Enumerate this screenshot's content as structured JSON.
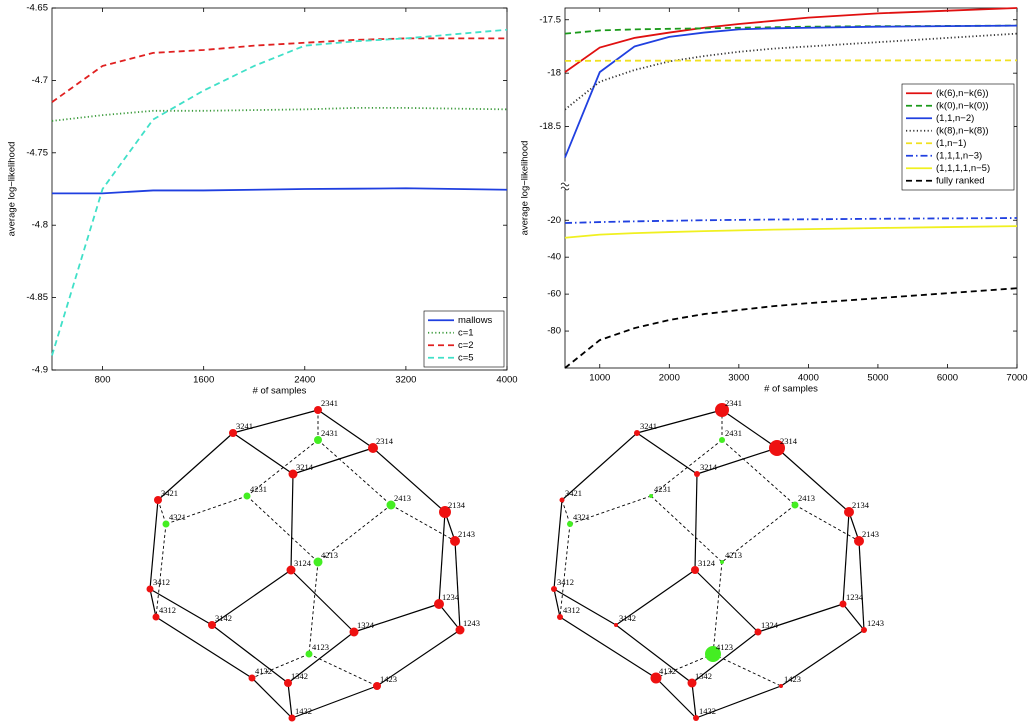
{
  "chart_data": [
    {
      "type": "line",
      "xlabel": "# of samples",
      "ylabel": "average log−likelihood",
      "x": [
        400,
        800,
        1200,
        1600,
        2000,
        2400,
        2800,
        3200,
        3600,
        4000
      ],
      "xlim": [
        400,
        4000
      ],
      "xticks": [
        800,
        1600,
        2400,
        3200,
        4000
      ],
      "ylim": [
        -4.9,
        -4.65
      ],
      "yticks": [
        -4.9,
        -4.85,
        -4.8,
        -4.75,
        -4.7,
        -4.65
      ],
      "legend": "lower right",
      "series": [
        {
          "name": "mallows",
          "color": "#1f3fe0",
          "style": "solid",
          "values": [
            -4.778,
            -4.778,
            -4.776,
            -4.776,
            -4.7755,
            -4.775,
            -4.7748,
            -4.7745,
            -4.775,
            -4.7755
          ]
        },
        {
          "name": "c=1",
          "color": "#3a9a3a",
          "style": "dotted",
          "values": [
            -4.728,
            -4.724,
            -4.721,
            -4.721,
            -4.7205,
            -4.72,
            -4.719,
            -4.719,
            -4.7195,
            -4.72
          ]
        },
        {
          "name": "c=2",
          "color": "#e02020",
          "style": "dashed",
          "values": [
            -4.715,
            -4.69,
            -4.681,
            -4.679,
            -4.676,
            -4.674,
            -4.672,
            -4.671,
            -4.671,
            -4.671
          ]
        },
        {
          "name": "c=5",
          "color": "#40e0c8",
          "style": "dashed",
          "values": [
            -4.89,
            -4.775,
            -4.727,
            -4.707,
            -4.69,
            -4.676,
            -4.673,
            -4.671,
            -4.668,
            -4.665
          ]
        }
      ]
    },
    {
      "type": "line",
      "xlabel": "# of samples",
      "ylabel": "average log−likelihood",
      "x": [
        500,
        1000,
        1500,
        2000,
        2500,
        3000,
        3500,
        4000,
        5000,
        6000,
        7000
      ],
      "xlim": [
        500,
        7000
      ],
      "xticks": [
        1000,
        2000,
        3000,
        4000,
        5000,
        6000,
        7000
      ],
      "ylim": [
        -100,
        -15
      ],
      "yticks": [
        -80,
        -60,
        -40,
        -20
      ],
      "upper_ylim": [
        -19,
        -17.39
      ],
      "upper_yticks": [
        -18.5,
        -18,
        -17.5
      ],
      "legend": "upper right",
      "series": [
        {
          "name": "(k(6),n−k(6))",
          "color": "#e01010",
          "style": "solid",
          "axis": "upper",
          "values": [
            -17.99,
            -17.76,
            -17.67,
            -17.62,
            -17.575,
            -17.54,
            -17.51,
            -17.48,
            -17.44,
            -17.415,
            -17.39
          ]
        },
        {
          "name": "(k(0),n−k(0))",
          "color": "#1a9a1a",
          "style": "dashed",
          "axis": "upper",
          "values": [
            -17.63,
            -17.6,
            -17.59,
            -17.585,
            -17.58,
            -17.575,
            -17.57,
            -17.565,
            -17.56,
            -17.558,
            -17.555
          ]
        },
        {
          "name": "(1,1,n−2)",
          "color": "#2040e0",
          "style": "solid",
          "axis": "upper",
          "values": [
            -18.79,
            -17.99,
            -17.75,
            -17.66,
            -17.62,
            -17.59,
            -17.58,
            -17.575,
            -17.565,
            -17.56,
            -17.555
          ]
        },
        {
          "name": "(k(8),n−k(8))",
          "color": "#333333",
          "style": "dotted",
          "axis": "upper",
          "values": [
            -18.34,
            -18.08,
            -17.97,
            -17.89,
            -17.84,
            -17.8,
            -17.77,
            -17.75,
            -17.71,
            -17.67,
            -17.63
          ]
        },
        {
          "name": "(1,n−1)",
          "color": "#f0e020",
          "style": "dashed",
          "axis": "upper",
          "values": [
            -17.885,
            -17.884,
            -17.883,
            -17.883,
            -17.882,
            -17.882,
            -17.881,
            -17.881,
            -17.881,
            -17.88,
            -17.88
          ]
        },
        {
          "name": "(1,1,1,n−3)",
          "color": "#2040e0",
          "style": "dashdot",
          "values": [
            -21.5,
            -21,
            -20.6,
            -20.3,
            -20,
            -19.8,
            -19.6,
            -19.5,
            -19.2,
            -19,
            -18.8
          ]
        },
        {
          "name": "(1,1,1,1,n−5)",
          "color": "#f0f020",
          "style": "solid",
          "values": [
            -29.5,
            -27.8,
            -27,
            -26.4,
            -25.9,
            -25.5,
            -25.1,
            -24.8,
            -24.2,
            -23.7,
            -23.2
          ]
        },
        {
          "name": "fully ranked",
          "color": "#000000",
          "style": "dashed",
          "values": [
            -100,
            -84.9,
            -78.4,
            -74,
            -70.8,
            -68.6,
            -66.5,
            -64.9,
            -62.2,
            -59.5,
            -56.8
          ]
        }
      ]
    }
  ],
  "diagrams": [
    {
      "nodes": [
        {
          "label": "2341",
          "color": "#ee1111",
          "size": 4
        },
        {
          "label": "3241",
          "color": "#ee1111",
          "size": 4
        },
        {
          "label": "2431",
          "color": "#44ee22",
          "size": 4
        },
        {
          "label": "2314",
          "color": "#ee1111",
          "size": 5
        },
        {
          "label": "3214",
          "color": "#ee1111",
          "size": 4.5
        },
        {
          "label": "3421",
          "color": "#ee1111",
          "size": 4
        },
        {
          "label": "4231",
          "color": "#44ee22",
          "size": 3.5
        },
        {
          "label": "2413",
          "color": "#44ee22",
          "size": 4.5
        },
        {
          "label": "2134",
          "color": "#ee1111",
          "size": 6
        },
        {
          "label": "4321",
          "color": "#44ee22",
          "size": 3.5
        },
        {
          "label": "2143",
          "color": "#ee1111",
          "size": 5
        },
        {
          "label": "4213",
          "color": "#44ee22",
          "size": 4.5
        },
        {
          "label": "3124",
          "color": "#ee1111",
          "size": 4.5
        },
        {
          "label": "3412",
          "color": "#ee1111",
          "size": 3.5
        },
        {
          "label": "1234",
          "color": "#ee1111",
          "size": 5
        },
        {
          "label": "4312",
          "color": "#ee1111",
          "size": 3.5
        },
        {
          "label": "3142",
          "color": "#ee1111",
          "size": 4
        },
        {
          "label": "1324",
          "color": "#ee1111",
          "size": 4.5
        },
        {
          "label": "1243",
          "color": "#ee1111",
          "size": 4.5
        },
        {
          "label": "4123",
          "color": "#44ee22",
          "size": 3.5
        },
        {
          "label": "4132",
          "color": "#ee1111",
          "size": 3.5
        },
        {
          "label": "1342",
          "color": "#ee1111",
          "size": 4
        },
        {
          "label": "1423",
          "color": "#ee1111",
          "size": 4
        },
        {
          "label": "1432",
          "color": "#ee1111",
          "size": 3.5
        }
      ]
    },
    {
      "nodes": [
        {
          "label": "2341",
          "color": "#ee1111",
          "size": 7
        },
        {
          "label": "3241",
          "color": "#ee1111",
          "size": 3
        },
        {
          "label": "2431",
          "color": "#44ee22",
          "size": 3
        },
        {
          "label": "2314",
          "color": "#ee1111",
          "size": 8
        },
        {
          "label": "3214",
          "color": "#ee1111",
          "size": 3
        },
        {
          "label": "3421",
          "color": "#ee1111",
          "size": 2.5
        },
        {
          "label": "4231",
          "color": "#44ee22",
          "size": 2
        },
        {
          "label": "2413",
          "color": "#44ee22",
          "size": 3.5
        },
        {
          "label": "2134",
          "color": "#ee1111",
          "size": 5
        },
        {
          "label": "4321",
          "color": "#44ee22",
          "size": 3
        },
        {
          "label": "2143",
          "color": "#ee1111",
          "size": 5
        },
        {
          "label": "4213",
          "color": "#44ee22",
          "size": 2
        },
        {
          "label": "3124",
          "color": "#ee1111",
          "size": 4
        },
        {
          "label": "3412",
          "color": "#ee1111",
          "size": 3
        },
        {
          "label": "1234",
          "color": "#ee1111",
          "size": 3.5
        },
        {
          "label": "4312",
          "color": "#ee1111",
          "size": 3
        },
        {
          "label": "3142",
          "color": "#ee1111",
          "size": 2
        },
        {
          "label": "1324",
          "color": "#ee1111",
          "size": 3.5
        },
        {
          "label": "1243",
          "color": "#ee1111",
          "size": 3
        },
        {
          "label": "4123",
          "color": "#44ee22",
          "size": 8
        },
        {
          "label": "4132",
          "color": "#ee1111",
          "size": 5.5
        },
        {
          "label": "1342",
          "color": "#ee1111",
          "size": 4.5
        },
        {
          "label": "1423",
          "color": "#ee1111",
          "size": 2
        },
        {
          "label": "1432",
          "color": "#ee1111",
          "size": 3
        }
      ]
    }
  ]
}
